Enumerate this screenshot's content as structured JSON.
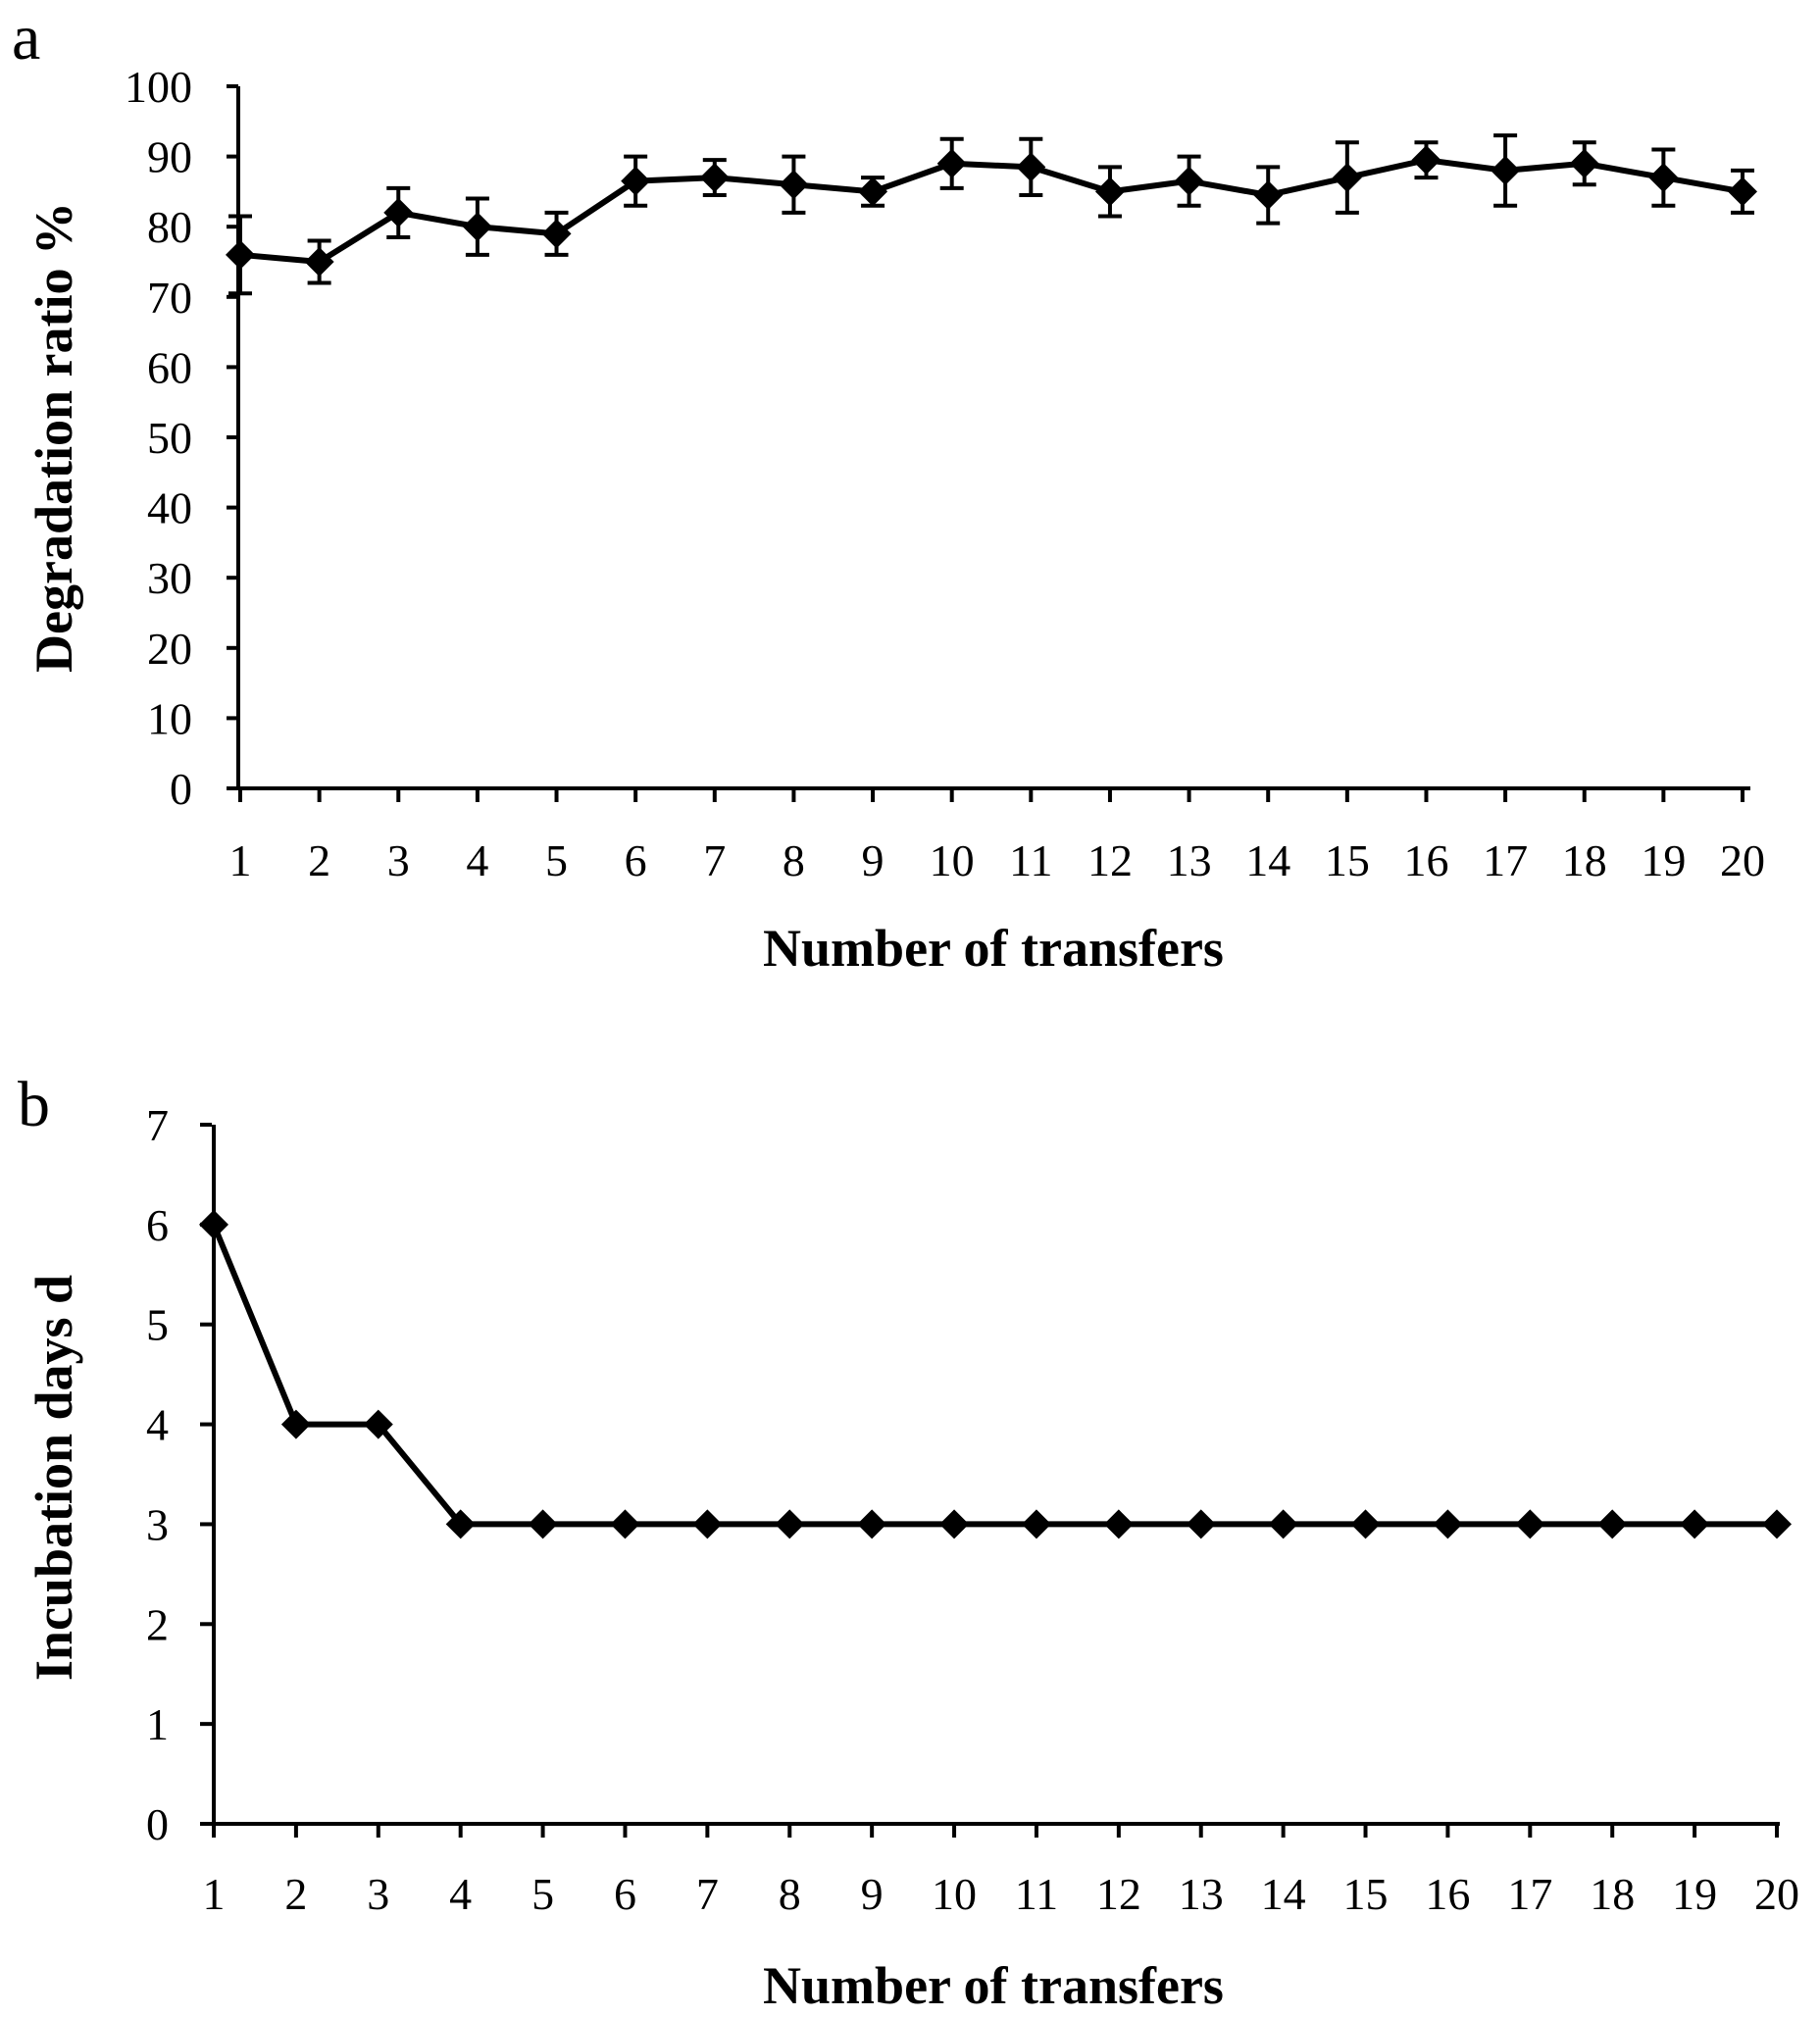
{
  "chart_data": [
    {
      "panel": "a",
      "type": "line",
      "xlabel": "Number of transfers",
      "ylabel": "Degradation ratio %",
      "categories": [
        "1",
        "2",
        "3",
        "4",
        "5",
        "6",
        "7",
        "8",
        "9",
        "10",
        "11",
        "12",
        "13",
        "14",
        "15",
        "16",
        "17",
        "18",
        "19",
        "20"
      ],
      "ylim": [
        0,
        100
      ],
      "yticks": [
        "0",
        "10",
        "20",
        "30",
        "40",
        "50",
        "60",
        "70",
        "80",
        "90",
        "100"
      ],
      "grid": false,
      "marker": "diamond",
      "color": "#000000",
      "series": [
        {
          "values": [
            76,
            75,
            82,
            80,
            79,
            86.5,
            87,
            86,
            85,
            89,
            88.5,
            85,
            86.5,
            84.5,
            87,
            89.5,
            88,
            89,
            87,
            85
          ],
          "errors": [
            5.5,
            3,
            3.5,
            4,
            3,
            3.5,
            2.5,
            4,
            2,
            3.5,
            4,
            3.5,
            3.5,
            4,
            5,
            2.5,
            5,
            3,
            4,
            3
          ]
        }
      ]
    },
    {
      "panel": "b",
      "type": "line",
      "xlabel": "Number of transfers",
      "ylabel": "Incubation days d",
      "categories": [
        "1",
        "2",
        "3",
        "4",
        "5",
        "6",
        "7",
        "8",
        "9",
        "10",
        "11",
        "12",
        "13",
        "14",
        "15",
        "16",
        "17",
        "18",
        "19",
        "20"
      ],
      "ylim": [
        0,
        7
      ],
      "yticks": [
        "0",
        "1",
        "2",
        "3",
        "4",
        "5",
        "6",
        "7"
      ],
      "grid": false,
      "marker": "diamond",
      "color": "#000000",
      "series": [
        {
          "values": [
            6,
            4,
            4,
            3,
            3,
            3,
            3,
            3,
            3,
            3,
            3,
            3,
            3,
            3,
            3,
            3,
            3,
            3,
            3,
            3
          ]
        }
      ]
    }
  ]
}
